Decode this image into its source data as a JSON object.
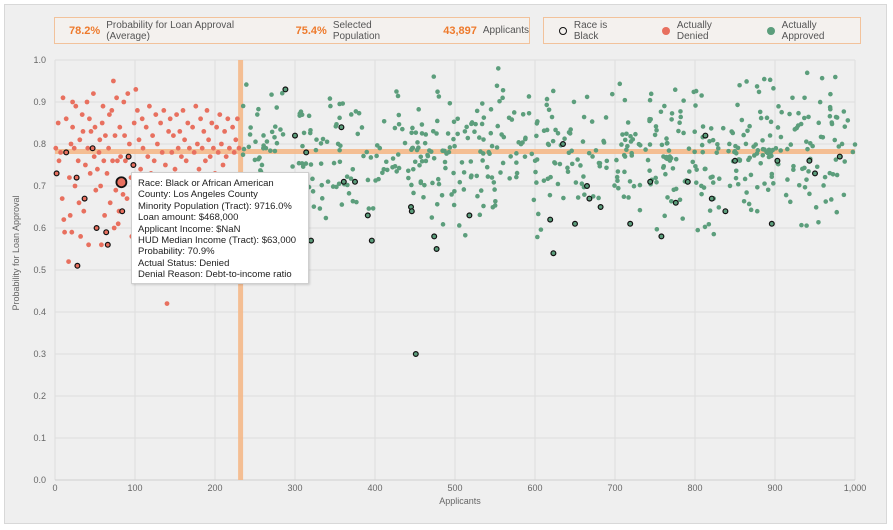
{
  "stats": {
    "avg_prob_value": "78.2%",
    "avg_prob_label": "Probability for Loan Approval (Average)",
    "selected_value": "75.4%",
    "selected_label": "Selected Population",
    "applicants_value": "43,897",
    "applicants_label": "Applicants"
  },
  "legend": {
    "race_black": "Race is Black",
    "denied": "Actually Denied",
    "approved": "Actually Approved"
  },
  "colors": {
    "denied": "#e8705f",
    "approved": "#5c9e7c",
    "reference": "#f5b98a",
    "black_outline": "#111111"
  },
  "tooltip": {
    "race": "Race: Black or African American",
    "county": "County: Los Angeles County",
    "minority": "Minority Population (Tract): 9716.0%",
    "loan": "Loan amount: $468,000",
    "income": "Applicant Income: $NaN",
    "hud": "HUD Median Income (Tract): $63,000",
    "probability": "Probability: 70.9%",
    "status": "Actual Status: Denied",
    "reason": "Denial Reason: Debt-to-income ratio"
  },
  "chart_data": {
    "type": "scatter",
    "xlabel": "Applicants",
    "ylabel": "Probability for Loan Approval",
    "xlim": [
      0,
      1000
    ],
    "ylim": [
      0,
      1
    ],
    "x_ticks": [
      "0",
      "100",
      "200",
      "300",
      "400",
      "500",
      "600",
      "700",
      "800",
      "900",
      "1,000"
    ],
    "y_ticks": [
      "0.0",
      "0.1",
      "0.2",
      "0.3",
      "0.4",
      "0.5",
      "0.6",
      "0.7",
      "0.8",
      "0.9",
      "1.0"
    ],
    "grid": true,
    "reference_x": 232,
    "reference_y": 0.782,
    "highlighted_point": {
      "x": 83,
      "y": 0.709
    },
    "black_applicants": [
      [
        2,
        0.73
      ],
      [
        14,
        0.78
      ],
      [
        27,
        0.72
      ],
      [
        28,
        0.51
      ],
      [
        37,
        0.67
      ],
      [
        47,
        0.79
      ],
      [
        52,
        0.6
      ],
      [
        64,
        0.59
      ],
      [
        66,
        0.56
      ],
      [
        83,
        0.71
      ],
      [
        84,
        0.64
      ],
      [
        92,
        0.77
      ],
      [
        98,
        0.75
      ],
      [
        288,
        0.93
      ],
      [
        300,
        0.82
      ],
      [
        314,
        0.78
      ],
      [
        320,
        0.57
      ],
      [
        358,
        0.84
      ],
      [
        361,
        0.71
      ],
      [
        375,
        0.71
      ],
      [
        391,
        0.63
      ],
      [
        396,
        0.57
      ],
      [
        445,
        0.65
      ],
      [
        446,
        0.64
      ],
      [
        451,
        0.3
      ],
      [
        474,
        0.58
      ],
      [
        477,
        0.55
      ],
      [
        518,
        0.63
      ],
      [
        619,
        0.62
      ],
      [
        623,
        0.54
      ],
      [
        635,
        0.8
      ],
      [
        650,
        0.61
      ],
      [
        665,
        0.7
      ],
      [
        668,
        0.67
      ],
      [
        682,
        0.65
      ],
      [
        719,
        0.61
      ],
      [
        744,
        0.71
      ],
      [
        758,
        0.58
      ],
      [
        776,
        0.66
      ],
      [
        791,
        0.71
      ],
      [
        813,
        0.82
      ],
      [
        821,
        0.67
      ],
      [
        838,
        0.64
      ],
      [
        850,
        0.76
      ],
      [
        896,
        0.61
      ],
      [
        903,
        0.76
      ],
      [
        943,
        0.76
      ],
      [
        950,
        0.73
      ],
      [
        981,
        0.77
      ]
    ],
    "denied": [
      [
        1,
        0.79
      ],
      [
        2,
        0.73
      ],
      [
        4,
        0.85
      ],
      [
        5,
        0.76
      ],
      [
        7,
        0.78
      ],
      [
        9,
        0.67
      ],
      [
        10,
        0.91
      ],
      [
        11,
        0.62
      ],
      [
        12,
        0.59
      ],
      [
        14,
        0.78
      ],
      [
        14,
        0.86
      ],
      [
        17,
        0.52
      ],
      [
        18,
        0.72
      ],
      [
        19,
        0.63
      ],
      [
        20,
        0.8
      ],
      [
        21,
        0.59
      ],
      [
        22,
        0.9
      ],
      [
        22,
        0.84
      ],
      [
        24,
        0.79
      ],
      [
        25,
        0.7
      ],
      [
        26,
        0.89
      ],
      [
        27,
        0.72
      ],
      [
        28,
        0.51
      ],
      [
        29,
        0.76
      ],
      [
        30,
        0.66
      ],
      [
        31,
        0.81
      ],
      [
        32,
        0.58
      ],
      [
        34,
        0.87
      ],
      [
        35,
        0.83
      ],
      [
        36,
        0.64
      ],
      [
        37,
        0.67
      ],
      [
        38,
        0.75
      ],
      [
        40,
        0.9
      ],
      [
        41,
        0.79
      ],
      [
        42,
        0.56
      ],
      [
        43,
        0.86
      ],
      [
        44,
        0.73
      ],
      [
        45,
        0.83
      ],
      [
        47,
        0.79
      ],
      [
        48,
        0.92
      ],
      [
        49,
        0.77
      ],
      [
        50,
        0.84
      ],
      [
        51,
        0.69
      ],
      [
        52,
        0.6
      ],
      [
        53,
        0.74
      ],
      [
        55,
        0.78
      ],
      [
        56,
        0.81
      ],
      [
        57,
        0.7
      ],
      [
        58,
        0.56
      ],
      [
        59,
        0.85
      ],
      [
        60,
        0.89
      ],
      [
        61,
        0.76
      ],
      [
        62,
        0.63
      ],
      [
        63,
        0.82
      ],
      [
        64,
        0.59
      ],
      [
        65,
        0.73
      ],
      [
        66,
        0.56
      ],
      [
        67,
        0.79
      ],
      [
        68,
        0.87
      ],
      [
        69,
        0.66
      ],
      [
        71,
        0.88
      ],
      [
        72,
        0.76
      ],
      [
        73,
        0.95
      ],
      [
        74,
        0.6
      ],
      [
        75,
        0.82
      ],
      [
        76,
        0.69
      ],
      [
        77,
        0.91
      ],
      [
        78,
        0.76
      ],
      [
        79,
        0.61
      ],
      [
        80,
        0.64
      ],
      [
        81,
        0.84
      ],
      [
        82,
        0.77
      ],
      [
        83,
        0.71
      ],
      [
        84,
        0.64
      ],
      [
        85,
        0.68
      ],
      [
        86,
        0.9
      ],
      [
        87,
        0.82
      ],
      [
        88,
        0.76
      ],
      [
        90,
        0.67
      ],
      [
        91,
        0.92
      ],
      [
        92,
        0.77
      ],
      [
        93,
        0.8
      ],
      [
        95,
        0.72
      ],
      [
        96,
        0.58
      ],
      [
        98,
        0.75
      ],
      [
        99,
        0.85
      ],
      [
        101,
        0.93
      ],
      [
        103,
        0.88
      ],
      [
        105,
        0.81
      ],
      [
        107,
        0.74
      ],
      [
        109,
        0.86
      ],
      [
        110,
        0.79
      ],
      [
        112,
        0.71
      ],
      [
        114,
        0.84
      ],
      [
        116,
        0.77
      ],
      [
        118,
        0.89
      ],
      [
        120,
        0.73
      ],
      [
        122,
        0.82
      ],
      [
        124,
        0.76
      ],
      [
        126,
        0.87
      ],
      [
        128,
        0.8
      ],
      [
        130,
        0.72
      ],
      [
        132,
        0.85
      ],
      [
        134,
        0.78
      ],
      [
        136,
        0.88
      ],
      [
        138,
        0.75
      ],
      [
        140,
        0.42
      ],
      [
        142,
        0.83
      ],
      [
        144,
        0.86
      ],
      [
        146,
        0.78
      ],
      [
        148,
        0.82
      ],
      [
        150,
        0.74
      ],
      [
        152,
        0.87
      ],
      [
        154,
        0.79
      ],
      [
        156,
        0.83
      ],
      [
        158,
        0.77
      ],
      [
        160,
        0.88
      ],
      [
        162,
        0.81
      ],
      [
        164,
        0.76
      ],
      [
        166,
        0.85
      ],
      [
        168,
        0.79
      ],
      [
        170,
        0.72
      ],
      [
        172,
        0.84
      ],
      [
        174,
        0.78
      ],
      [
        176,
        0.89
      ],
      [
        178,
        0.8
      ],
      [
        180,
        0.74
      ],
      [
        182,
        0.86
      ],
      [
        184,
        0.79
      ],
      [
        186,
        0.83
      ],
      [
        188,
        0.76
      ],
      [
        190,
        0.88
      ],
      [
        192,
        0.81
      ],
      [
        194,
        0.77
      ],
      [
        196,
        0.85
      ],
      [
        198,
        0.79
      ],
      [
        200,
        0.73
      ],
      [
        202,
        0.84
      ],
      [
        204,
        0.78
      ],
      [
        206,
        0.87
      ],
      [
        208,
        0.8
      ],
      [
        210,
        0.75
      ],
      [
        212,
        0.83
      ],
      [
        214,
        0.77
      ],
      [
        216,
        0.86
      ],
      [
        218,
        0.79
      ],
      [
        220,
        0.72
      ],
      [
        222,
        0.84
      ],
      [
        224,
        0.78
      ],
      [
        226,
        0.81
      ],
      [
        228,
        0.86
      ],
      [
        230,
        0.79
      ]
    ],
    "approved_summary": "Approximately 650 approved applicants at x 232-1000, y mostly 0.55-0.98 (plus one outlier near 451, 0.30)"
  }
}
